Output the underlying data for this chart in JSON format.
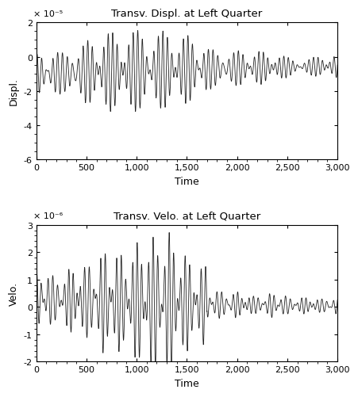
{
  "title1": "Transv. Displ. at Left Quarter",
  "title2": "Transv. Velo. at Left Quarter",
  "ylabel1": "Displ.",
  "ylabel2": "Velo.",
  "xlabel": "Time",
  "xlim": [
    0,
    3000
  ],
  "ylim1": [
    -6e-05,
    2e-05
  ],
  "ylim2": [
    -2e-06,
    3e-06
  ],
  "yticks1": [
    -6e-05,
    -4e-05,
    -2e-05,
    0,
    2e-05
  ],
  "yticks2": [
    -2e-06,
    -1e-06,
    0,
    1e-06,
    2e-06,
    3e-06
  ],
  "xticks": [
    0,
    500,
    1000,
    1500,
    2000,
    2500,
    3000
  ],
  "xticklabels": [
    "0",
    "500",
    "1,000",
    "1,500",
    "2,000",
    "2,500",
    "3,000"
  ],
  "scale_label1": "× 10⁻⁵",
  "scale_label2": "× 10⁻⁶",
  "line_color": "#222222",
  "line_width": 0.6,
  "bg_color": "#ffffff",
  "figsize": [
    4.52,
    5.02
  ],
  "dpi": 100
}
